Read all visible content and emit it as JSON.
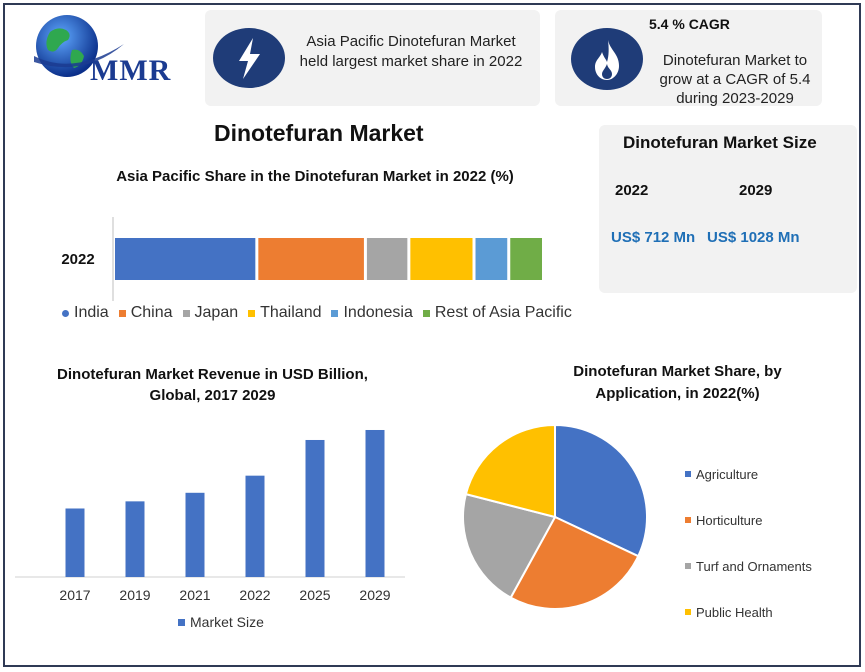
{
  "logo": {
    "text": "MMR"
  },
  "card1": {
    "icon": "lightning-bolt-icon",
    "text": "Asia Pacific Dinotefuran Market held largest market share in 2022"
  },
  "card2": {
    "icon": "flame-icon",
    "title": "5.4 % CAGR",
    "text": "Dinotefuran Market to grow at a CAGR of 5.4 during 2023-2029"
  },
  "main_title": "Dinotefuran Market",
  "market_size": {
    "title": "Dinotefuran Market Size",
    "years": [
      "2022",
      "2029"
    ],
    "values": [
      "US$ 712 Mn",
      "US$ 1028 Mn"
    ]
  },
  "chart_data": [
    {
      "type": "bar",
      "orientation": "horizontal-stacked",
      "title": "Asia Pacific Share in the Dinotefuran Market in 2022 (%)",
      "categories": [
        "2022"
      ],
      "series": [
        {
          "name": "India",
          "values": [
            33
          ],
          "color": "#4472c4"
        },
        {
          "name": "China",
          "values": [
            25
          ],
          "color": "#ed7d31"
        },
        {
          "name": "Japan",
          "values": [
            10
          ],
          "color": "#a5a5a5"
        },
        {
          "name": "Thailand",
          "values": [
            15
          ],
          "color": "#ffc000"
        },
        {
          "name": "Indonesia",
          "values": [
            8
          ],
          "color": "#5b9bd5"
        },
        {
          "name": "Rest of Asia Pacific",
          "values": [
            8
          ],
          "color": "#70ad47"
        }
      ],
      "legend": "bottom"
    },
    {
      "type": "bar",
      "title": "Dinotefuran Market Revenue in USD Billion, Global, 2017 2029",
      "categories": [
        "2017",
        "2019",
        "2021",
        "2022",
        "2025",
        "2029"
      ],
      "series": [
        {
          "name": "Market Size",
          "values": [
            0.48,
            0.53,
            0.59,
            0.71,
            0.96,
            1.03
          ],
          "color": "#4472c4"
        }
      ],
      "ylim": [
        0,
        1.1
      ],
      "grid": false,
      "legend": "bottom"
    },
    {
      "type": "pie",
      "title": "Dinotefuran Market Share, by Application, in 2022(%)",
      "labels": [
        "Agriculture",
        "Horticulture",
        "Turf and Ornaments",
        "Public Health"
      ],
      "values": [
        32,
        26,
        21,
        21
      ],
      "colors": [
        "#4472c4",
        "#ed7d31",
        "#a5a5a5",
        "#ffc000"
      ],
      "legend": "right"
    }
  ]
}
